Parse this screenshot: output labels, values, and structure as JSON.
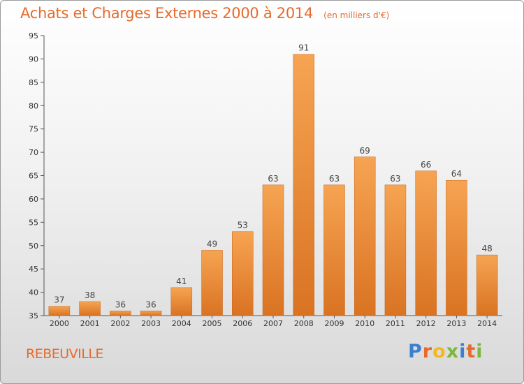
{
  "chart_data": {
    "type": "bar",
    "title": "Achats et Charges Externes 2000 à 2014",
    "subtitle": "(en milliers d'€)",
    "categories": [
      "2000",
      "2001",
      "2002",
      "2003",
      "2004",
      "2005",
      "2006",
      "2007",
      "2008",
      "2009",
      "2010",
      "2011",
      "2012",
      "2013",
      "2014"
    ],
    "values": [
      37,
      38,
      36,
      36,
      41,
      49,
      53,
      63,
      91,
      63,
      69,
      63,
      66,
      64,
      48
    ],
    "ylim": [
      35,
      95
    ],
    "yticks": [
      35,
      40,
      45,
      50,
      55,
      60,
      65,
      70,
      75,
      80,
      85,
      90,
      95
    ],
    "grid": false,
    "bar_color": "#f0923a"
  },
  "location": "REBEUVILLE",
  "logo": {
    "letters": [
      "P",
      "r",
      "o",
      "x",
      "i",
      "t",
      "i"
    ],
    "colors": [
      "#3b7fd0",
      "#e8692a",
      "#f2b820",
      "#7bb83c",
      "#3b7fd0",
      "#e8692a",
      "#7bb83c"
    ]
  }
}
